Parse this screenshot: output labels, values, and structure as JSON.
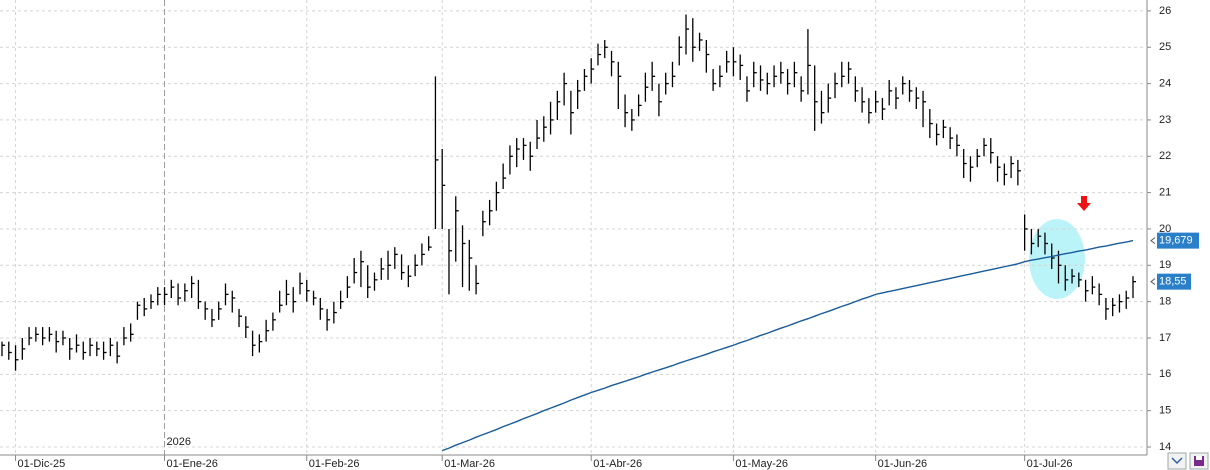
{
  "chart_data": {
    "type": "ohlc",
    "ylim": [
      13.78,
      26.3
    ],
    "yticks": [
      14,
      15,
      16,
      17,
      18,
      19,
      20,
      21,
      22,
      23,
      24,
      25,
      26
    ],
    "grid": true,
    "year_label": "2026",
    "categories": [
      null,
      null,
      "01-Dic-25",
      null,
      null,
      null,
      null,
      null,
      null,
      null,
      null,
      null,
      null,
      null,
      null,
      null,
      null,
      null,
      null,
      null,
      null,
      null,
      null,
      null,
      "01-Ene-26",
      null,
      null,
      null,
      null,
      null,
      null,
      null,
      null,
      null,
      null,
      null,
      null,
      null,
      null,
      null,
      null,
      null,
      null,
      null,
      null,
      "01-Feb-26",
      null,
      null,
      null,
      null,
      null,
      null,
      null,
      null,
      null,
      null,
      null,
      null,
      null,
      null,
      null,
      null,
      null,
      null,
      null,
      "01-Mar-26",
      null,
      null,
      null,
      null,
      null,
      null,
      null,
      null,
      null,
      null,
      null,
      null,
      null,
      null,
      null,
      null,
      null,
      null,
      null,
      null,
      null,
      "01-Abr-26",
      null,
      null,
      null,
      null,
      null,
      null,
      null,
      null,
      null,
      null,
      null,
      null,
      null,
      null,
      null,
      null,
      null,
      null,
      null,
      null,
      "01-May-26",
      null,
      null,
      null,
      null,
      null,
      null,
      null,
      null,
      null,
      null,
      null,
      null,
      null,
      null,
      null,
      null,
      null,
      null,
      null,
      null,
      "01-Jun-26",
      null,
      null,
      null,
      null,
      null,
      null,
      null,
      null,
      null,
      null,
      null,
      null,
      null,
      null,
      null,
      null,
      null,
      null,
      null,
      null,
      null,
      "01-Jul-26",
      null,
      null,
      null,
      null,
      null,
      null,
      null,
      null,
      null,
      null,
      null,
      null,
      null,
      null,
      null,
      null
    ],
    "ohlc": {
      "color": "#000000",
      "label_color": "#2a7fc9",
      "high": [
        16.9,
        16.9,
        16.8,
        17.0,
        17.3,
        17.3,
        17.3,
        17.3,
        17.2,
        17.2,
        17.0,
        17.1,
        16.9,
        17.0,
        16.9,
        16.9,
        17.0,
        16.9,
        17.3,
        17.4,
        18.0,
        18.1,
        18.2,
        18.4,
        18.4,
        18.6,
        18.5,
        18.5,
        18.7,
        18.6,
        18.0,
        17.8,
        18.0,
        18.5,
        18.3,
        17.8,
        17.6,
        17.2,
        17.1,
        17.5,
        17.7,
        18.3,
        18.6,
        18.4,
        18.8,
        18.6,
        18.3,
        18.1,
        17.8,
        18.0,
        18.3,
        18.7,
        19.2,
        19.4,
        19.0,
        18.8,
        19.2,
        19.4,
        19.5,
        19.3,
        19.0,
        19.3,
        19.6,
        19.8,
        24.2,
        22.2,
        20.0,
        20.9,
        20.1,
        19.7,
        19.0,
        20.5,
        20.8,
        21.3,
        21.8,
        22.3,
        22.5,
        22.5,
        22.4,
        23.0,
        23.1,
        23.5,
        23.8,
        24.3,
        23.8,
        24.1,
        24.4,
        24.7,
        25.1,
        25.2,
        24.9,
        24.6,
        23.7,
        23.3,
        23.7,
        24.3,
        24.6,
        24.0,
        24.3,
        24.6,
        25.3,
        25.9,
        25.8,
        25.4,
        25.2,
        24.4,
        24.5,
        24.9,
        25.0,
        24.8,
        24.2,
        24.6,
        24.5,
        24.3,
        24.5,
        24.6,
        24.4,
        24.6,
        24.2,
        25.5,
        24.5,
        23.8,
        24.0,
        24.3,
        24.6,
        24.6,
        24.2,
        23.9,
        23.6,
        23.8,
        23.6,
        24.1,
        23.9,
        24.2,
        24.1,
        23.9,
        23.8,
        23.3,
        22.9,
        23.0,
        22.8,
        22.6,
        22.2,
        22.0,
        22.2,
        22.5,
        22.5,
        22.0,
        21.8,
        22.0,
        21.9,
        20.4,
        20.0,
        20.0,
        19.9,
        19.6,
        19.4,
        19.0,
        18.9,
        18.8,
        18.6,
        18.7,
        18.5,
        18.1,
        18.1,
        18.2,
        18.3,
        18.7
      ],
      "low": [
        16.5,
        16.4,
        16.1,
        16.4,
        16.8,
        16.9,
        16.8,
        16.9,
        16.6,
        16.8,
        16.4,
        16.6,
        16.4,
        16.5,
        16.5,
        16.4,
        16.5,
        16.3,
        16.8,
        16.9,
        17.5,
        17.6,
        17.8,
        17.9,
        17.9,
        18.1,
        17.9,
        18.0,
        18.1,
        17.8,
        17.5,
        17.3,
        17.5,
        17.9,
        17.7,
        17.3,
        17.0,
        16.5,
        16.6,
        16.9,
        17.2,
        17.7,
        17.9,
        17.7,
        18.2,
        18.0,
        17.9,
        17.5,
        17.2,
        17.4,
        17.8,
        18.1,
        18.5,
        18.4,
        18.1,
        18.3,
        18.6,
        18.6,
        18.9,
        18.6,
        18.4,
        18.7,
        19.0,
        19.4,
        20.0,
        20.0,
        18.2,
        19.1,
        18.4,
        18.3,
        18.2,
        19.8,
        20.1,
        20.5,
        21.1,
        21.5,
        21.7,
        21.9,
        21.6,
        22.2,
        22.4,
        22.6,
        23.0,
        23.4,
        22.6,
        23.3,
        23.8,
        24.0,
        24.5,
        24.7,
        24.2,
        23.3,
        22.8,
        22.7,
        23.1,
        23.5,
        23.8,
        23.1,
        23.7,
        23.9,
        24.5,
        24.8,
        24.6,
        24.9,
        24.3,
        23.8,
        23.9,
        24.3,
        24.2,
        24.1,
        23.5,
        23.9,
        23.8,
        23.7,
        23.9,
        24.0,
        23.7,
        23.9,
        23.5,
        23.7,
        22.7,
        22.9,
        23.2,
        23.6,
        23.9,
        24.0,
        23.5,
        23.2,
        22.9,
        23.2,
        23.0,
        23.4,
        23.3,
        23.7,
        23.5,
        23.3,
        22.8,
        22.5,
        22.3,
        22.5,
        22.2,
        22.0,
        21.4,
        21.3,
        21.7,
        22.0,
        21.8,
        21.3,
        21.2,
        21.4,
        21.2,
        19.4,
        19.3,
        19.5,
        19.3,
        18.9,
        18.5,
        18.3,
        18.5,
        18.4,
        18.0,
        18.2,
        17.9,
        17.5,
        17.6,
        17.7,
        17.8,
        18.1
      ],
      "close": [
        16.8,
        16.6,
        16.4,
        16.7,
        17.0,
        17.1,
        17.0,
        17.1,
        16.9,
        17.0,
        16.7,
        16.8,
        16.6,
        16.8,
        16.7,
        16.6,
        16.8,
        16.5,
        17.0,
        17.1,
        17.9,
        17.8,
        18.0,
        18.2,
        18.2,
        18.4,
        18.1,
        18.3,
        18.5,
        18.0,
        17.8,
        17.5,
        17.8,
        18.2,
        18.1,
        17.6,
        17.3,
        16.8,
        16.9,
        17.2,
        17.5,
        17.9,
        18.2,
        18.0,
        18.5,
        18.3,
        18.1,
        17.8,
        17.5,
        17.7,
        18.0,
        18.4,
        18.8,
        19.1,
        18.4,
        18.6,
        18.9,
        19.0,
        19.3,
        18.8,
        18.7,
        19.0,
        19.3,
        19.5,
        21.9,
        21.2,
        19.4,
        20.5,
        19.6,
        19.2,
        18.5,
        20.2,
        20.5,
        21.0,
        21.4,
        22.0,
        22.2,
        22.3,
        22.0,
        22.5,
        22.8,
        23.0,
        23.5,
        24.0,
        23.2,
        23.8,
        24.2,
        24.4,
        24.8,
        25.0,
        24.6,
        24.2,
        23.2,
        23.0,
        23.4,
        23.9,
        24.2,
        23.5,
        24.0,
        24.2,
        25.0,
        25.5,
        25.0,
        25.2,
        24.8,
        24.0,
        24.2,
        24.6,
        24.6,
        24.5,
        23.8,
        24.3,
        24.1,
        24.0,
        24.2,
        24.3,
        24.0,
        24.3,
        23.8,
        24.5,
        23.5,
        23.2,
        23.6,
        24.0,
        24.2,
        24.4,
        23.8,
        23.5,
        23.2,
        23.5,
        23.3,
        23.8,
        23.6,
        24.0,
        23.8,
        23.6,
        23.5,
        22.9,
        22.6,
        22.8,
        22.5,
        22.3,
        21.8,
        21.7,
        22.0,
        22.3,
        22.1,
        21.7,
        21.5,
        21.8,
        21.6,
        20.0,
        19.6,
        19.8,
        19.6,
        19.2,
        19.0,
        18.6,
        18.7,
        18.6,
        18.3,
        18.4,
        18.2,
        17.8,
        17.9,
        18.0,
        18.1,
        18.55
      ],
      "value_labels": [
        null,
        null,
        null,
        null,
        null,
        null,
        null,
        null,
        null,
        null,
        null,
        null,
        null,
        null,
        null,
        null,
        null,
        null,
        null,
        null,
        null,
        null,
        null,
        null,
        null,
        null,
        null,
        null,
        null,
        null,
        null,
        null,
        null,
        null,
        null,
        null,
        null,
        null,
        null,
        null,
        null,
        null,
        null,
        null,
        null,
        null,
        null,
        null,
        null,
        null,
        null,
        null,
        null,
        null,
        null,
        null,
        null,
        null,
        null,
        null,
        null,
        null,
        null,
        null,
        null,
        null,
        null,
        null,
        null,
        null,
        null,
        null,
        null,
        null,
        null,
        null,
        null,
        null,
        null,
        null,
        null,
        null,
        null,
        null,
        null,
        null,
        null,
        null,
        null,
        null,
        null,
        null,
        null,
        null,
        null,
        null,
        null,
        null,
        null,
        null,
        null,
        null,
        null,
        null,
        null,
        null,
        null,
        null,
        null,
        null,
        null,
        null,
        null,
        null,
        null,
        null,
        null,
        null,
        null,
        null,
        null,
        null,
        null,
        null,
        null,
        null,
        null,
        null,
        null,
        null,
        null,
        null,
        null,
        null,
        null,
        null,
        null,
        null,
        null,
        null,
        null,
        null,
        null,
        null,
        null,
        null,
        null,
        null,
        null,
        null,
        null,
        null,
        null,
        null,
        null,
        null,
        null,
        null,
        null,
        null,
        null,
        null,
        null,
        null,
        null,
        null,
        null,
        "18,55"
      ]
    },
    "moving_average": {
      "color": "#1a5c9a",
      "label_color": "#2a7fc9",
      "values": [
        null,
        null,
        null,
        null,
        null,
        null,
        null,
        null,
        null,
        null,
        null,
        null,
        null,
        null,
        null,
        null,
        null,
        null,
        null,
        null,
        null,
        null,
        null,
        null,
        null,
        null,
        null,
        null,
        null,
        null,
        null,
        null,
        null,
        null,
        null,
        null,
        null,
        null,
        null,
        null,
        null,
        null,
        null,
        null,
        null,
        null,
        null,
        null,
        null,
        null,
        null,
        null,
        null,
        null,
        null,
        null,
        null,
        null,
        null,
        null,
        null,
        null,
        null,
        null,
        null,
        13.9,
        13.97,
        14.05,
        14.12,
        14.19,
        14.27,
        14.34,
        14.41,
        14.48,
        14.56,
        14.63,
        14.7,
        14.78,
        14.85,
        14.92,
        15.0,
        15.07,
        15.14,
        15.21,
        15.29,
        15.36,
        15.43,
        15.5,
        15.56,
        15.62,
        15.69,
        15.75,
        15.81,
        15.87,
        15.93,
        16.0,
        16.06,
        16.12,
        16.18,
        16.24,
        16.31,
        16.37,
        16.43,
        16.49,
        16.55,
        16.62,
        16.68,
        16.74,
        16.8,
        16.87,
        16.93,
        17.0,
        17.07,
        17.13,
        17.2,
        17.27,
        17.33,
        17.4,
        17.47,
        17.53,
        17.6,
        17.67,
        17.73,
        17.8,
        17.87,
        17.93,
        18.0,
        18.07,
        18.13,
        18.2,
        18.24,
        18.28,
        18.32,
        18.36,
        18.4,
        18.44,
        18.48,
        18.52,
        18.56,
        18.6,
        18.64,
        18.68,
        18.72,
        18.76,
        18.8,
        18.84,
        18.88,
        18.92,
        18.96,
        19.0,
        19.04,
        19.1,
        19.14,
        19.17,
        19.21,
        19.24,
        19.28,
        19.32,
        19.35,
        19.39,
        19.42,
        19.46,
        19.5,
        19.53,
        19.57,
        19.61,
        19.64,
        19.679
      ],
      "value_labels": [
        null,
        null,
        null,
        null,
        null,
        null,
        null,
        null,
        null,
        null,
        null,
        null,
        null,
        null,
        null,
        null,
        null,
        null,
        null,
        null,
        null,
        null,
        null,
        null,
        null,
        null,
        null,
        null,
        null,
        null,
        null,
        null,
        null,
        null,
        null,
        null,
        null,
        null,
        null,
        null,
        null,
        null,
        null,
        null,
        null,
        null,
        null,
        null,
        null,
        null,
        null,
        null,
        null,
        null,
        null,
        null,
        null,
        null,
        null,
        null,
        null,
        null,
        null,
        null,
        null,
        null,
        null,
        null,
        null,
        null,
        null,
        null,
        null,
        null,
        null,
        null,
        null,
        null,
        null,
        null,
        null,
        null,
        null,
        null,
        null,
        null,
        null,
        null,
        null,
        null,
        null,
        null,
        null,
        null,
        null,
        null,
        null,
        null,
        null,
        null,
        null,
        null,
        null,
        null,
        null,
        null,
        null,
        null,
        null,
        null,
        null,
        null,
        null,
        null,
        null,
        null,
        null,
        null,
        null,
        null,
        null,
        null,
        null,
        null,
        null,
        null,
        null,
        null,
        null,
        null,
        null,
        null,
        null,
        null,
        null,
        null,
        null,
        null,
        null,
        null,
        null,
        null,
        null,
        null,
        null,
        null,
        null,
        null,
        null,
        null,
        null,
        null,
        null,
        null,
        null,
        null,
        null,
        null,
        null,
        null,
        null,
        null,
        null,
        null,
        null,
        null,
        null,
        "19,679"
      ]
    }
  }
}
